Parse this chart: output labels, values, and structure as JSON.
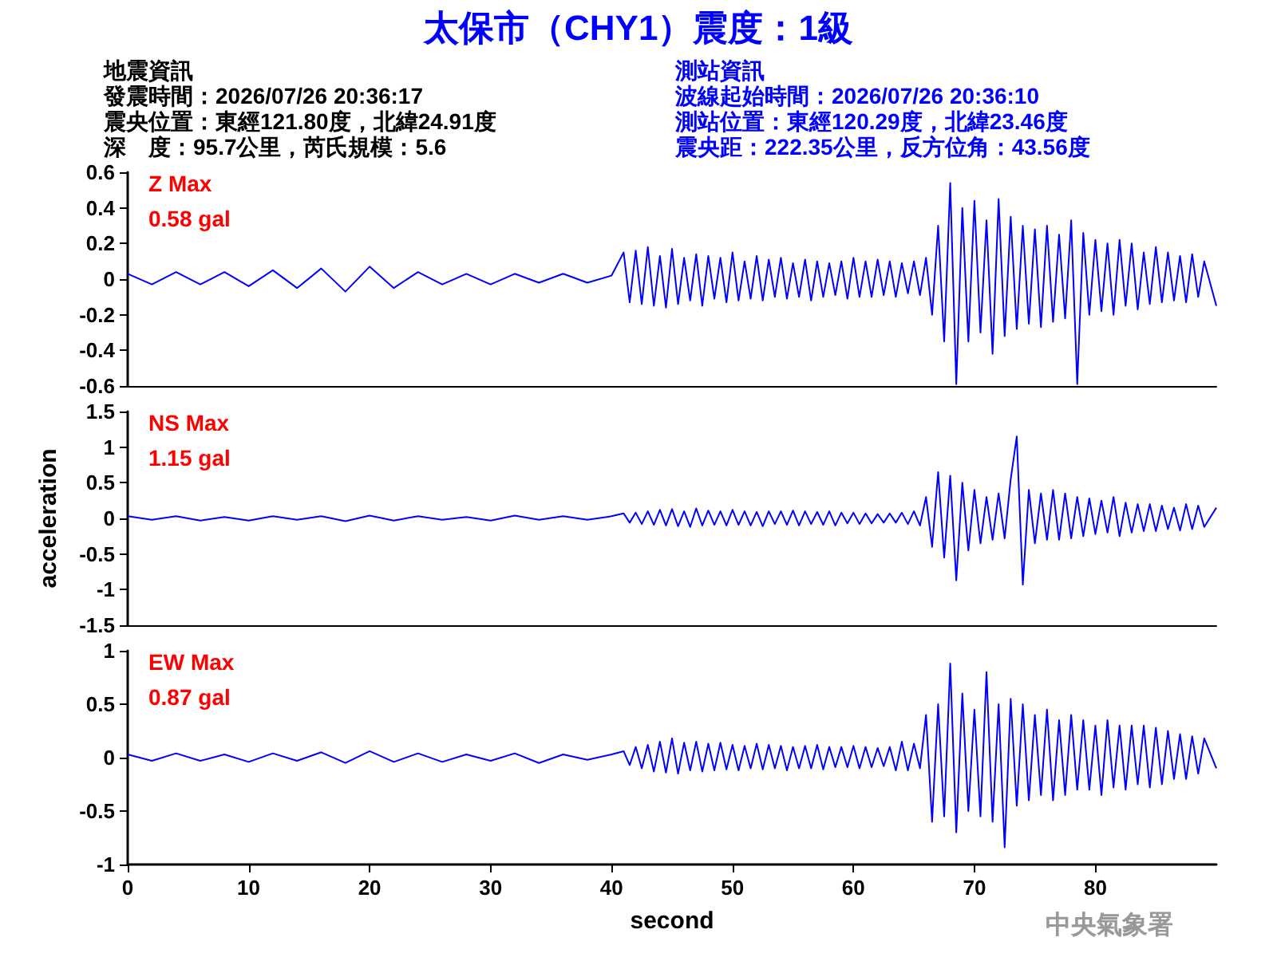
{
  "chart_data": [
    {
      "type": "line",
      "title": "太保市（CHY1）震度：1級",
      "annotations": [
        "Z Max",
        "0.58 gal",
        "地震資訊",
        "發震時間：2026/07/26 20:36:17",
        "震央位置：東經121.80度，北緯24.91度",
        "深　度：95.7公里，芮氏規模：5.6",
        "測站資訊",
        "波線起始時間：2026/07/26 20:36:10",
        "測站位置：東經120.29度，北緯23.46度",
        "震央距：222.35公里，反方位角：43.56度"
      ],
      "xlim": [
        0,
        90
      ],
      "xticks": [
        0,
        10,
        20,
        30,
        40,
        50,
        60,
        70,
        80
      ],
      "ylim": [
        -0.6,
        0.6
      ],
      "yticks": [
        -0.6,
        -0.4,
        -0.2,
        0,
        0.2,
        0.4,
        0.6
      ],
      "tick_labels": "y",
      "grid": false,
      "x": [
        0,
        2,
        4,
        6,
        8,
        10,
        12,
        14,
        16,
        18,
        20,
        22,
        24,
        26,
        28,
        30,
        32,
        34,
        36,
        38,
        40,
        41,
        41.5,
        42,
        42.5,
        43,
        43.5,
        44,
        44.5,
        45,
        45.5,
        46,
        46.5,
        47,
        47.5,
        48,
        48.5,
        49,
        49.5,
        50,
        50.5,
        51,
        51.5,
        52,
        52.5,
        53,
        53.5,
        54,
        54.5,
        55,
        55.5,
        56,
        56.5,
        57,
        57.5,
        58,
        58.5,
        59,
        59.5,
        60,
        60.5,
        61,
        61.5,
        62,
        62.5,
        63,
        63.5,
        64,
        64.5,
        65,
        65.5,
        66,
        66.5,
        67,
        67.5,
        68,
        68.5,
        69,
        69.5,
        70,
        70.5,
        71,
        71.5,
        72,
        72.5,
        73,
        73.5,
        74,
        74.5,
        75,
        75.5,
        76,
        76.5,
        77,
        77.5,
        78,
        78.5,
        79,
        79.5,
        80,
        80.5,
        81,
        81.5,
        82,
        82.5,
        83,
        83.5,
        84,
        84.5,
        85,
        85.5,
        86,
        86.5,
        87,
        87.5,
        88,
        88.5,
        89,
        90
      ],
      "series": [
        {
          "color": "#0000ff",
          "values": [
            0.03,
            -0.03,
            0.04,
            -0.03,
            0.04,
            -0.04,
            0.05,
            -0.05,
            0.06,
            -0.07,
            0.07,
            -0.05,
            0.04,
            -0.03,
            0.03,
            -0.03,
            0.03,
            -0.02,
            0.03,
            -0.02,
            0.02,
            0.15,
            -0.13,
            0.16,
            -0.14,
            0.18,
            -0.15,
            0.13,
            -0.16,
            0.17,
            -0.14,
            0.12,
            -0.12,
            0.14,
            -0.15,
            0.13,
            -0.11,
            0.12,
            -0.13,
            0.15,
            -0.12,
            0.1,
            -0.11,
            0.13,
            -0.12,
            0.11,
            -0.1,
            0.12,
            -0.11,
            0.09,
            -0.1,
            0.11,
            -0.12,
            0.1,
            -0.1,
            0.09,
            -0.09,
            0.1,
            -0.11,
            0.12,
            -0.1,
            0.1,
            -0.1,
            0.11,
            -0.09,
            0.1,
            -0.1,
            0.09,
            -0.08,
            0.1,
            -0.09,
            0.12,
            -0.2,
            0.3,
            -0.35,
            0.54,
            -0.59,
            0.4,
            -0.35,
            0.44,
            -0.3,
            0.33,
            -0.42,
            0.45,
            -0.32,
            0.35,
            -0.28,
            0.3,
            -0.25,
            0.28,
            -0.27,
            0.3,
            -0.24,
            0.25,
            -0.22,
            0.33,
            -0.59,
            0.26,
            -0.2,
            0.22,
            -0.18,
            0.2,
            -0.2,
            0.22,
            -0.15,
            0.2,
            -0.17,
            0.15,
            -0.14,
            0.18,
            -0.13,
            0.15,
            -0.12,
            0.13,
            -0.13,
            0.14,
            -0.1,
            0.1,
            -0.15
          ]
        }
      ]
    },
    {
      "type": "line",
      "ylabel": "acceleration",
      "annotations": [
        "NS Max",
        "1.15 gal"
      ],
      "xlim": [
        0,
        90
      ],
      "xticks": [
        0,
        10,
        20,
        30,
        40,
        50,
        60,
        70,
        80
      ],
      "ylim": [
        -1.5,
        1.5
      ],
      "yticks": [
        -1.5,
        -1,
        -0.5,
        0,
        0.5,
        1,
        1.5
      ],
      "tick_labels": "y",
      "grid": false,
      "x": [
        0,
        2,
        4,
        6,
        8,
        10,
        12,
        14,
        16,
        18,
        20,
        22,
        24,
        26,
        28,
        30,
        32,
        34,
        36,
        38,
        40,
        41,
        41.5,
        42,
        42.5,
        43,
        43.5,
        44,
        44.5,
        45,
        45.5,
        46,
        46.5,
        47,
        47.5,
        48,
        48.5,
        49,
        49.5,
        50,
        50.5,
        51,
        51.5,
        52,
        52.5,
        53,
        53.5,
        54,
        54.5,
        55,
        55.5,
        56,
        56.5,
        57,
        57.5,
        58,
        58.5,
        59,
        59.5,
        60,
        60.5,
        61,
        61.5,
        62,
        62.5,
        63,
        63.5,
        64,
        64.5,
        65,
        65.5,
        66,
        66.5,
        67,
        67.5,
        68,
        68.5,
        69,
        69.5,
        70,
        70.5,
        71,
        71.5,
        72,
        72.5,
        73,
        73.5,
        74,
        74.5,
        75,
        75.5,
        76,
        76.5,
        77,
        77.5,
        78,
        78.5,
        79,
        79.5,
        80,
        80.5,
        81,
        81.5,
        82,
        82.5,
        83,
        83.5,
        84,
        84.5,
        85,
        85.5,
        86,
        86.5,
        87,
        87.5,
        88,
        88.5,
        89,
        90
      ],
      "series": [
        {
          "color": "#0000ff",
          "values": [
            0.03,
            -0.02,
            0.03,
            -0.03,
            0.02,
            -0.03,
            0.03,
            -0.02,
            0.03,
            -0.04,
            0.04,
            -0.03,
            0.03,
            -0.02,
            0.02,
            -0.03,
            0.04,
            -0.02,
            0.03,
            -0.02,
            0.03,
            0.07,
            -0.06,
            0.08,
            -0.08,
            0.1,
            -0.09,
            0.12,
            -0.1,
            0.13,
            -0.11,
            0.1,
            -0.12,
            0.14,
            -0.1,
            0.11,
            -0.09,
            0.1,
            -0.1,
            0.12,
            -0.09,
            0.1,
            -0.1,
            0.09,
            -0.11,
            0.1,
            -0.08,
            0.1,
            -0.09,
            0.11,
            -0.1,
            0.1,
            -0.08,
            0.09,
            -0.09,
            0.1,
            -0.1,
            0.08,
            -0.07,
            0.08,
            -0.08,
            0.07,
            -0.07,
            0.06,
            -0.06,
            0.07,
            -0.06,
            0.08,
            -0.08,
            0.1,
            -0.1,
            0.3,
            -0.4,
            0.65,
            -0.55,
            0.6,
            -0.87,
            0.5,
            -0.45,
            0.4,
            -0.35,
            0.3,
            -0.3,
            0.35,
            -0.28,
            0.55,
            1.15,
            -0.93,
            0.4,
            -0.35,
            0.35,
            -0.3,
            0.4,
            -0.3,
            0.35,
            -0.28,
            0.3,
            -0.25,
            0.28,
            -0.22,
            0.25,
            -0.2,
            0.3,
            -0.25,
            0.22,
            -0.2,
            0.2,
            -0.18,
            0.2,
            -0.18,
            0.18,
            -0.15,
            0.15,
            -0.17,
            0.2,
            -0.15,
            0.18,
            -0.12,
            0.15
          ]
        }
      ]
    },
    {
      "type": "line",
      "xlabel": "second",
      "annotations": [
        "EW Max",
        "0.87 gal",
        "中央氣象署"
      ],
      "xlim": [
        0,
        90
      ],
      "xticks": [
        0,
        10,
        20,
        30,
        40,
        50,
        60,
        70,
        80
      ],
      "ylim": [
        -1,
        1
      ],
      "yticks": [
        -1,
        -0.5,
        0,
        0.5,
        1
      ],
      "grid": false,
      "x": [
        0,
        2,
        4,
        6,
        8,
        10,
        12,
        14,
        16,
        18,
        20,
        22,
        24,
        26,
        28,
        30,
        32,
        34,
        36,
        38,
        40,
        41,
        41.5,
        42,
        42.5,
        43,
        43.5,
        44,
        44.5,
        45,
        45.5,
        46,
        46.5,
        47,
        47.5,
        48,
        48.5,
        49,
        49.5,
        50,
        50.5,
        51,
        51.5,
        52,
        52.5,
        53,
        53.5,
        54,
        54.5,
        55,
        55.5,
        56,
        56.5,
        57,
        57.5,
        58,
        58.5,
        59,
        59.5,
        60,
        60.5,
        61,
        61.5,
        62,
        62.5,
        63,
        63.5,
        64,
        64.5,
        65,
        65.5,
        66,
        66.5,
        67,
        67.5,
        68,
        68.5,
        69,
        69.5,
        70,
        70.5,
        71,
        71.5,
        72,
        72.5,
        73,
        73.5,
        74,
        74.5,
        75,
        75.5,
        76,
        76.5,
        77,
        77.5,
        78,
        78.5,
        79,
        79.5,
        80,
        80.5,
        81,
        81.5,
        82,
        82.5,
        83,
        83.5,
        84,
        84.5,
        85,
        85.5,
        86,
        86.5,
        87,
        87.5,
        88,
        88.5,
        89,
        90
      ],
      "series": [
        {
          "color": "#0000ff",
          "values": [
            0.03,
            -0.03,
            0.04,
            -0.03,
            0.03,
            -0.04,
            0.04,
            -0.03,
            0.05,
            -0.05,
            0.06,
            -0.04,
            0.04,
            -0.04,
            0.03,
            -0.03,
            0.04,
            -0.05,
            0.03,
            -0.02,
            0.03,
            0.06,
            -0.07,
            0.1,
            -0.1,
            0.12,
            -0.13,
            0.15,
            -0.14,
            0.18,
            -0.15,
            0.14,
            -0.12,
            0.15,
            -0.13,
            0.13,
            -0.12,
            0.14,
            -0.11,
            0.12,
            -0.12,
            0.11,
            -0.1,
            0.13,
            -0.11,
            0.12,
            -0.1,
            0.11,
            -0.12,
            0.1,
            -0.1,
            0.11,
            -0.1,
            0.12,
            -0.11,
            0.1,
            -0.09,
            0.1,
            -0.09,
            0.11,
            -0.1,
            0.1,
            -0.09,
            0.09,
            -0.08,
            0.1,
            -0.12,
            0.15,
            -0.12,
            0.13,
            -0.1,
            0.4,
            -0.6,
            0.5,
            -0.55,
            0.88,
            -0.7,
            0.6,
            -0.5,
            0.45,
            -0.55,
            0.8,
            -0.6,
            0.5,
            -0.84,
            0.55,
            -0.45,
            0.5,
            -0.4,
            0.4,
            -0.35,
            0.45,
            -0.4,
            0.35,
            -0.35,
            0.4,
            -0.3,
            0.35,
            -0.3,
            0.3,
            -0.35,
            0.35,
            -0.28,
            0.3,
            -0.3,
            0.3,
            -0.25,
            0.3,
            -0.28,
            0.28,
            -0.25,
            0.25,
            -0.2,
            0.22,
            -0.2,
            0.2,
            -0.15,
            0.18,
            -0.1
          ]
        }
      ]
    }
  ]
}
